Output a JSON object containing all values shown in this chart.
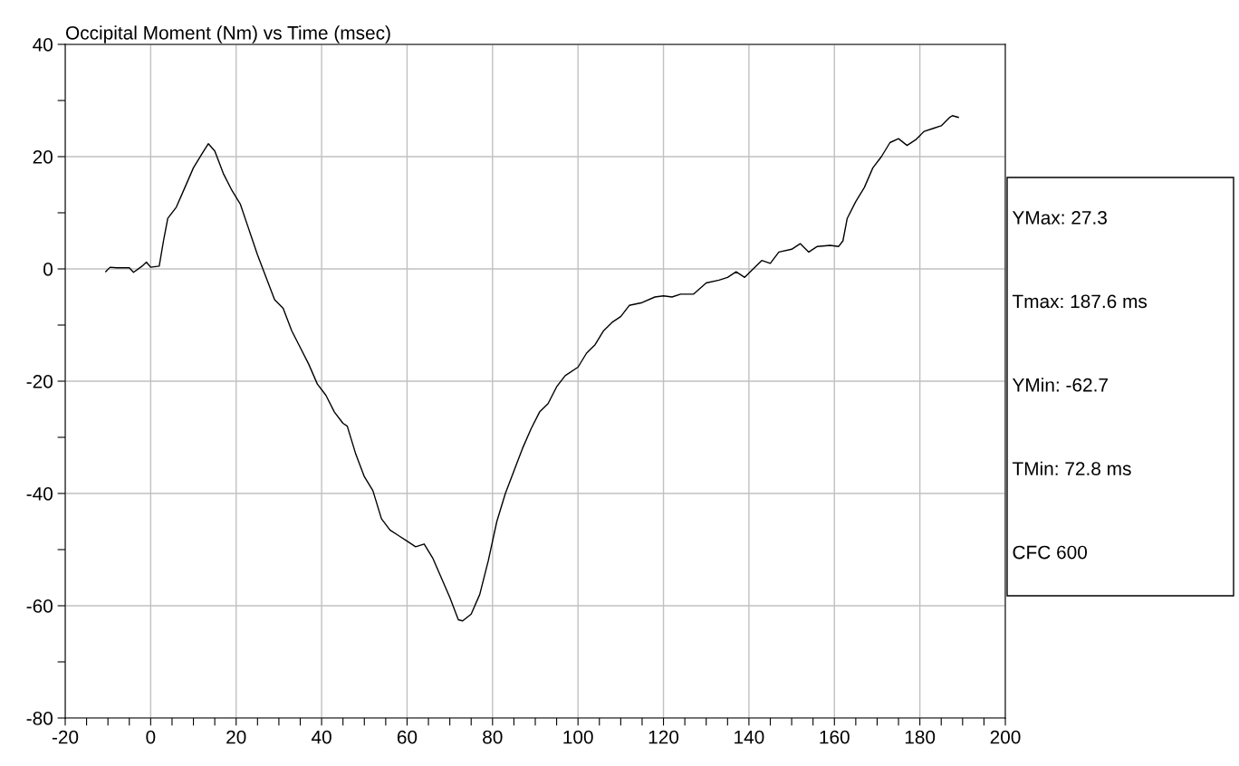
{
  "chart_data": {
    "type": "line",
    "title": "Occipital Moment (Nm) vs Time (msec)",
    "x": [
      -10.5,
      -9.5,
      -8,
      -5,
      -4,
      -2,
      -1,
      0,
      2,
      3,
      4,
      6,
      8,
      10,
      12,
      13.5,
      15,
      17,
      19,
      21,
      23,
      25,
      27,
      29,
      31,
      33,
      35,
      37,
      39,
      41,
      43,
      45,
      46,
      48,
      50,
      52,
      54,
      56,
      58,
      60,
      62,
      64,
      66,
      68,
      70,
      72,
      73,
      75,
      77,
      79,
      81,
      83,
      85,
      87,
      89,
      91,
      93,
      95,
      97,
      100,
      102,
      104,
      106,
      108,
      110,
      112,
      115,
      118,
      120,
      122,
      124,
      127,
      130,
      133,
      135,
      137,
      139,
      141,
      143,
      145,
      147,
      150,
      152,
      154,
      156,
      159,
      161,
      162,
      163,
      165,
      167,
      169,
      171,
      173,
      175,
      177,
      179,
      181,
      183,
      185,
      187,
      187.6,
      189
    ],
    "series": [
      {
        "color": "#000000",
        "values": [
          -0.5,
          0.3,
          0.2,
          0.2,
          -0.6,
          0.5,
          1.2,
          0.3,
          0.5,
          5,
          9,
          11,
          14.5,
          18,
          20.5,
          22.3,
          21,
          17,
          14,
          11.5,
          7,
          2.5,
          -1.5,
          -5.5,
          -7,
          -11,
          -14,
          -17,
          -20.5,
          -22.5,
          -25.5,
          -27.5,
          -28,
          -33,
          -37,
          -39.5,
          -44.5,
          -46.5,
          -47.5,
          -48.5,
          -49.5,
          -49,
          -51.5,
          -55,
          -58.5,
          -62.5,
          -62.7,
          -61.5,
          -58,
          -52,
          -45,
          -40,
          -36,
          -32,
          -28.5,
          -25.5,
          -24,
          -21,
          -19,
          -17.5,
          -15,
          -13.5,
          -11,
          -9.5,
          -8.5,
          -6.5,
          -6,
          -5,
          -4.8,
          -5,
          -4.5,
          -4.5,
          -2.5,
          -2,
          -1.5,
          -0.5,
          -1.5,
          0,
          1.5,
          1,
          3,
          3.5,
          4.5,
          3,
          4,
          4.2,
          4,
          5,
          9,
          12,
          14.5,
          18,
          20,
          22.5,
          23.2,
          22,
          23,
          24.5,
          25,
          25.5,
          27,
          27.3,
          27
        ]
      }
    ],
    "xlim": [
      -20,
      200
    ],
    "ylim": [
      -80,
      40
    ],
    "xticks": [
      -20,
      {
        "value": -15,
        "label": null
      },
      {
        "value": -10,
        "label": null
      },
      {
        "value": -5,
        "label": null
      },
      0,
      {
        "value": 5,
        "label": null
      },
      {
        "value": 10,
        "label": null
      },
      {
        "value": 15,
        "label": null
      },
      20,
      {
        "value": 25,
        "label": null
      },
      {
        "value": 30,
        "label": null
      },
      {
        "value": 35,
        "label": null
      },
      40,
      {
        "value": 45,
        "label": null
      },
      {
        "value": 50,
        "label": null
      },
      {
        "value": 55,
        "label": null
      },
      60,
      {
        "value": 65,
        "label": null
      },
      {
        "value": 70,
        "label": null
      },
      {
        "value": 75,
        "label": null
      },
      80,
      {
        "value": 85,
        "label": null
      },
      {
        "value": 90,
        "label": null
      },
      {
        "value": 95,
        "label": null
      },
      100,
      {
        "value": 105,
        "label": null
      },
      {
        "value": 110,
        "label": null
      },
      {
        "value": 115,
        "label": null
      },
      120,
      {
        "value": 125,
        "label": null
      },
      {
        "value": 130,
        "label": null
      },
      {
        "value": 135,
        "label": null
      },
      140,
      {
        "value": 145,
        "label": null
      },
      {
        "value": 150,
        "label": null
      },
      {
        "value": 155,
        "label": null
      },
      160,
      {
        "value": 165,
        "label": null
      },
      {
        "value": 170,
        "label": null
      },
      {
        "value": 175,
        "label": null
      },
      180,
      {
        "value": 185,
        "label": null
      },
      {
        "value": 190,
        "label": null
      },
      {
        "value": 195,
        "label": null
      },
      200
    ],
    "yticks": [
      -80,
      {
        "value": -70,
        "label": null
      },
      -60,
      {
        "value": -50,
        "label": null
      },
      -40,
      {
        "value": -30,
        "label": null
      },
      -20,
      {
        "value": -10,
        "label": null
      },
      0,
      {
        "value": 10,
        "label": null
      },
      20,
      {
        "value": 30,
        "label": null
      },
      40
    ],
    "grid": true,
    "legend": false,
    "annotations": [
      "YMax: 27.3",
      "Tmax: 187.6 ms",
      "YMin: -62.7",
      "TMin: 72.8 ms",
      "CFC 600"
    ]
  }
}
